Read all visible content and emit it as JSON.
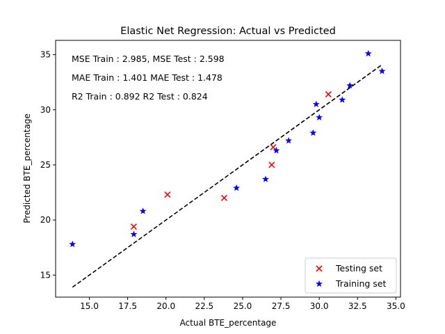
{
  "chart_data": {
    "type": "scatter",
    "title": "Elastic Net Regression: Actual vs Predicted",
    "xlabel": "Actual BTE_percentage",
    "ylabel": "Predicted BTE_percentage",
    "xlim": [
      12.8,
      35.3
    ],
    "ylim": [
      13.0,
      36.3
    ],
    "xticks": [
      "15.0",
      "17.5",
      "20.0",
      "22.5",
      "25.0",
      "27.5",
      "30.0",
      "32.5",
      "35.0"
    ],
    "yticks": [
      "15",
      "20",
      "25",
      "30",
      "35"
    ],
    "grid": false,
    "legend_position": "bottom-right",
    "annotations": [
      "MSE Train : 2.985, MSE Test  : 2.598",
      "MAE Train  : 1.401 MAE Test  : 1.478",
      "R2 Train  : 0.892 R2 Test  : 0.824"
    ],
    "reference_line": {
      "style": "dashed",
      "color": "#000000",
      "x": [
        13.9,
        34.1
      ],
      "y": [
        13.9,
        34.1
      ]
    },
    "series": [
      {
        "name": "Testing set",
        "marker": "x",
        "color": "#ff0000",
        "points": [
          {
            "x": 17.9,
            "y": 19.4
          },
          {
            "x": 20.1,
            "y": 22.3
          },
          {
            "x": 23.8,
            "y": 22.0
          },
          {
            "x": 26.9,
            "y": 25.0
          },
          {
            "x": 27.0,
            "y": 26.6
          },
          {
            "x": 30.6,
            "y": 31.4
          }
        ]
      },
      {
        "name": "Training set",
        "marker": "star",
        "color": "#0000ff",
        "points": [
          {
            "x": 13.9,
            "y": 17.8
          },
          {
            "x": 17.9,
            "y": 18.7
          },
          {
            "x": 18.5,
            "y": 20.8
          },
          {
            "x": 24.6,
            "y": 22.9
          },
          {
            "x": 26.5,
            "y": 23.7
          },
          {
            "x": 27.2,
            "y": 26.3
          },
          {
            "x": 28.0,
            "y": 27.2
          },
          {
            "x": 29.6,
            "y": 27.9
          },
          {
            "x": 29.8,
            "y": 30.5
          },
          {
            "x": 30.0,
            "y": 29.3
          },
          {
            "x": 31.5,
            "y": 30.9
          },
          {
            "x": 32.0,
            "y": 32.2
          },
          {
            "x": 33.2,
            "y": 35.1
          },
          {
            "x": 34.1,
            "y": 33.5
          }
        ]
      }
    ]
  }
}
